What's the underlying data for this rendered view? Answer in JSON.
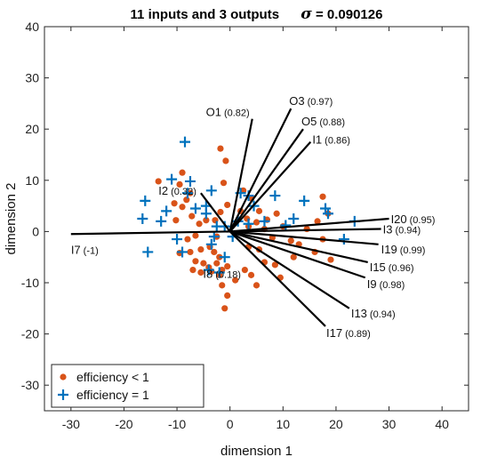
{
  "chart_data": {
    "type": "scatter",
    "title": "11 inputs and 3 outputs",
    "sigma_symbol": "σ",
    "sigma_text": " = 0.090126",
    "xlabel": "dimension 1",
    "ylabel": "dimension 2",
    "xlim": [
      -35,
      45
    ],
    "ylim": [
      -35,
      40
    ],
    "xticks": [
      -30,
      -20,
      -10,
      0,
      10,
      20,
      30,
      40
    ],
    "yticks": [
      -30,
      -20,
      -10,
      0,
      10,
      20,
      30,
      40
    ],
    "grid": false,
    "legend_position": "bottom-left",
    "colors": {
      "inefficient": "#d95319",
      "efficient": "#0072bd",
      "vectors": "#000000"
    },
    "series": [
      {
        "name": "efficiency < 1",
        "marker": "circle",
        "points": [
          [
            -1.8,
            16.2
          ],
          [
            -0.8,
            13.8
          ],
          [
            -9,
            11.5
          ],
          [
            -13.5,
            9.8
          ],
          [
            -9.5,
            9.2
          ],
          [
            -7.5,
            7.5
          ],
          [
            -8.2,
            6.2
          ],
          [
            -10.5,
            5.5
          ],
          [
            -9,
            4.8
          ],
          [
            -10.2,
            2.2
          ],
          [
            -7.2,
            3
          ],
          [
            -5.8,
            1.5
          ],
          [
            -2.8,
            2.2
          ],
          [
            -6.5,
            -0.8
          ],
          [
            -8,
            -1.5
          ],
          [
            -2.5,
            -1
          ],
          [
            -3.8,
            -3
          ],
          [
            -5.5,
            -3.5
          ],
          [
            -3,
            -4
          ],
          [
            -2,
            -5
          ],
          [
            -7.5,
            -4
          ],
          [
            -9.5,
            -4.2
          ],
          [
            -6.5,
            -5.8
          ],
          [
            -5,
            -6.2
          ],
          [
            -2.5,
            -6.2
          ],
          [
            -4,
            -7
          ],
          [
            -7,
            -7.5
          ],
          [
            -5.5,
            -8
          ],
          [
            -3.5,
            -7.8
          ],
          [
            -1.5,
            -7.5
          ],
          [
            -0.5,
            -6.8
          ],
          [
            -2,
            -8.5
          ],
          [
            -1.5,
            -10.5
          ],
          [
            -0.5,
            -12.5
          ],
          [
            -1,
            -15
          ],
          [
            1,
            -9.5
          ],
          [
            2.8,
            -7.5
          ],
          [
            4,
            -8.5
          ],
          [
            5,
            -10.5
          ],
          [
            6.5,
            -6
          ],
          [
            8.5,
            -6.5
          ],
          [
            9.5,
            -9
          ],
          [
            3.5,
            -3
          ],
          [
            5.5,
            -3.5
          ],
          [
            -1.2,
            9.5
          ],
          [
            2.5,
            8
          ],
          [
            -0.5,
            5.2
          ],
          [
            4,
            6.5
          ],
          [
            -1.8,
            3.8
          ],
          [
            5.5,
            4
          ],
          [
            3.2,
            2.5
          ],
          [
            5,
            1.8
          ],
          [
            7,
            2.3
          ],
          [
            8.8,
            3.5
          ],
          [
            6.5,
            0.5
          ],
          [
            10,
            1
          ],
          [
            8,
            -1.2
          ],
          [
            11.5,
            -1.8
          ],
          [
            13,
            -2.5
          ],
          [
            12,
            -5
          ],
          [
            16,
            -4
          ],
          [
            14.5,
            0.5
          ],
          [
            16.5,
            2
          ],
          [
            18.5,
            3.5
          ],
          [
            17.5,
            6.8
          ],
          [
            17.5,
            -1.5
          ],
          [
            19,
            -5.5
          ],
          [
            3.5,
            1
          ],
          [
            -4.5,
            2.2
          ],
          [
            2,
            4
          ]
        ]
      },
      {
        "name": "efficiency = 1",
        "marker": "plus",
        "points": [
          [
            -8.5,
            17.5
          ],
          [
            -11,
            10.2
          ],
          [
            -7.5,
            9.8
          ],
          [
            -16,
            6
          ],
          [
            -12,
            4
          ],
          [
            -6.5,
            4.5
          ],
          [
            -4.5,
            5
          ],
          [
            -4.5,
            3.5
          ],
          [
            -16.5,
            2.5
          ],
          [
            -13,
            2
          ],
          [
            -10,
            -1.5
          ],
          [
            -3,
            -1
          ],
          [
            -1,
            1
          ],
          [
            -15.5,
            -4
          ],
          [
            -9,
            -4
          ],
          [
            -3.5,
            -2.5
          ],
          [
            -1,
            -5
          ],
          [
            -4,
            -7.5
          ],
          [
            -2,
            -8
          ],
          [
            -8,
            7.5
          ],
          [
            2,
            7.5
          ],
          [
            3.5,
            7
          ],
          [
            8.5,
            7
          ],
          [
            4.5,
            5
          ],
          [
            1.5,
            2
          ],
          [
            3.5,
            1.5
          ],
          [
            6.5,
            2
          ],
          [
            10.5,
            1.2
          ],
          [
            12,
            2.5
          ],
          [
            14,
            6
          ],
          [
            18,
            4.5
          ],
          [
            18.5,
            3.5
          ],
          [
            23.5,
            2
          ],
          [
            21.5,
            -1.5
          ],
          [
            -3.5,
            8
          ],
          [
            -2.5,
            1
          ],
          [
            0.5,
            -1
          ]
        ]
      }
    ],
    "vectors": [
      {
        "label": "O1",
        "value": "(0.82)",
        "end": [
          4.2,
          22
        ]
      },
      {
        "label": "O3",
        "value": "(0.97)",
        "end": [
          11.5,
          24
        ]
      },
      {
        "label": "O5",
        "value": "(0.88)",
        "end": [
          13.8,
          20
        ]
      },
      {
        "label": "I1",
        "value": "(0.86)",
        "end": [
          15.2,
          17.5
        ]
      },
      {
        "label": "I2",
        "value": "(0.32)",
        "end": [
          -5.5,
          7.5
        ]
      },
      {
        "label": "I7",
        "value": "(-1)",
        "end": [
          -30,
          -0.5
        ]
      },
      {
        "label": "I8",
        "value": "(0.18)",
        "end": [
          0,
          0
        ]
      },
      {
        "label": "I20",
        "value": "(0.95)",
        "end": [
          30,
          2.5
        ]
      },
      {
        "label": "I3",
        "value": "(0.94)",
        "end": [
          28.5,
          0.5
        ]
      },
      {
        "label": "I19",
        "value": "(0.99)",
        "end": [
          28,
          -2.5
        ]
      },
      {
        "label": "I15",
        "value": "(0.96)",
        "end": [
          26,
          -6
        ]
      },
      {
        "label": "I9",
        "value": "(0.98)",
        "end": [
          25.5,
          -9
        ]
      },
      {
        "label": "I13",
        "value": "(0.94)",
        "end": [
          22.5,
          -15
        ]
      },
      {
        "label": "I17",
        "value": "(0.89)",
        "end": [
          18,
          -18.5
        ]
      }
    ]
  }
}
